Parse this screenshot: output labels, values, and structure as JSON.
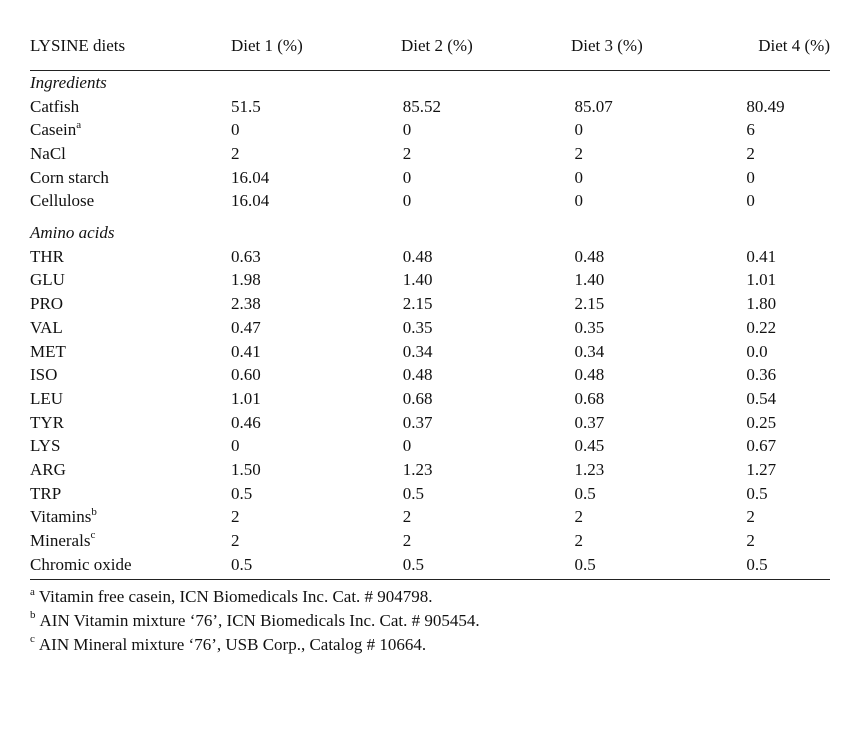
{
  "table": {
    "header": [
      "LYSINE diets",
      "Diet 1 (%)",
      "Diet 2 (%)",
      "Diet 3 (%)",
      "Diet 4 (%)"
    ],
    "section_ingredients": "Ingredients",
    "ingredients": [
      {
        "name": "Catfish",
        "sup": "",
        "values": [
          "51.5",
          "85.52",
          "85.07",
          "80.49"
        ]
      },
      {
        "name": "Casein",
        "sup": "a",
        "values": [
          "0",
          "0",
          "0",
          "6"
        ]
      },
      {
        "name": "NaCl",
        "sup": "",
        "values": [
          "2",
          "2",
          "2",
          "2"
        ]
      },
      {
        "name": "Corn starch",
        "sup": "",
        "values": [
          "16.04",
          "0",
          "0",
          "0"
        ]
      },
      {
        "name": "Cellulose",
        "sup": "",
        "values": [
          "16.04",
          "0",
          "0",
          "0"
        ]
      }
    ],
    "section_amino": "Amino acids",
    "amino_acids": [
      {
        "name": "THR",
        "sup": "",
        "values": [
          "0.63",
          "0.48",
          "0.48",
          "0.41"
        ]
      },
      {
        "name": "GLU",
        "sup": "",
        "values": [
          "1.98",
          "1.40",
          "1.40",
          "1.01"
        ]
      },
      {
        "name": "PRO",
        "sup": "",
        "values": [
          "2.38",
          "2.15",
          "2.15",
          "1.80"
        ]
      },
      {
        "name": "VAL",
        "sup": "",
        "values": [
          "0.47",
          "0.35",
          "0.35",
          "0.22"
        ]
      },
      {
        "name": "MET",
        "sup": "",
        "values": [
          "0.41",
          "0.34",
          "0.34",
          "0.0"
        ]
      },
      {
        "name": "ISO",
        "sup": "",
        "values": [
          "0.60",
          "0.48",
          "0.48",
          "0.36"
        ]
      },
      {
        "name": "LEU",
        "sup": "",
        "values": [
          "1.01",
          "0.68",
          "0.68",
          "0.54"
        ]
      },
      {
        "name": "TYR",
        "sup": "",
        "values": [
          "0.46",
          "0.37",
          "0.37",
          "0.25"
        ]
      },
      {
        "name": "LYS",
        "sup": "",
        "values": [
          "0",
          "0",
          "0.45",
          "0.67"
        ]
      },
      {
        "name": "ARG",
        "sup": "",
        "values": [
          "1.50",
          "1.23",
          "1.23",
          "1.27"
        ]
      },
      {
        "name": "TRP",
        "sup": "",
        "values": [
          "0.5",
          "0.5",
          "0.5",
          "0.5"
        ]
      },
      {
        "name": "Vitamins",
        "sup": "b",
        "values": [
          "2",
          "2",
          "2",
          "2"
        ]
      },
      {
        "name": "Minerals",
        "sup": "c",
        "values": [
          "2",
          "2",
          "2",
          "2"
        ]
      },
      {
        "name": "Chromic oxide",
        "sup": "",
        "values": [
          "0.5",
          "0.5",
          "0.5",
          "0.5"
        ]
      }
    ],
    "footnotes": [
      {
        "mark": "a",
        "text": "Vitamin free casein, ICN Biomedicals Inc. Cat. # 904798."
      },
      {
        "mark": "b",
        "text": "AIN Vitamin mixture ‘76’, ICN Biomedicals Inc. Cat. # 905454."
      },
      {
        "mark": "c",
        "text": "AIN Mineral mixture ‘76’, USB Corp., Catalog # 10664."
      }
    ]
  }
}
